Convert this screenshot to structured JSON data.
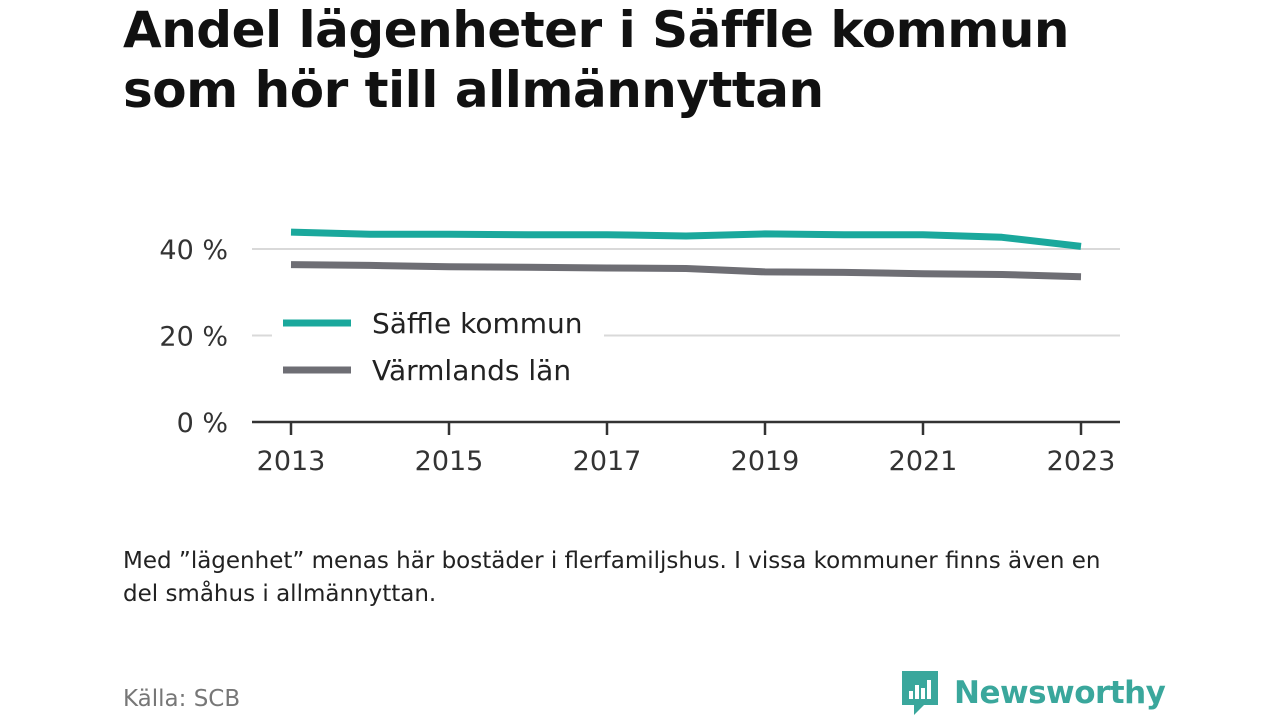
{
  "header": {
    "title": "Andel lägenheter i Säffle kommun som hör till allmännyttan"
  },
  "chart_data": {
    "type": "line",
    "x": [
      2013,
      2014,
      2015,
      2016,
      2017,
      2018,
      2019,
      2020,
      2021,
      2022,
      2023
    ],
    "x_tick_labels": [
      "2013",
      "2015",
      "2017",
      "2019",
      "2021",
      "2023"
    ],
    "y_tick_labels": [
      "0 %",
      "20 %",
      "40 %"
    ],
    "y_ticks": [
      0,
      20,
      40
    ],
    "ylim": [
      0,
      45
    ],
    "grid": true,
    "legend_placement": "left-middle",
    "series": [
      {
        "name": "Säffle kommun",
        "color": "#1aa89c",
        "values": [
          43.9,
          43.4,
          43.4,
          43.3,
          43.3,
          43.0,
          43.5,
          43.3,
          43.3,
          42.7,
          40.6
        ]
      },
      {
        "name": "Värmlands län",
        "color": "#6e6e74",
        "values": [
          36.4,
          36.2,
          35.9,
          35.8,
          35.6,
          35.5,
          34.7,
          34.6,
          34.3,
          34.1,
          33.6
        ]
      }
    ]
  },
  "footer": {
    "note": "Med ”lägenhet” menas här bostäder i flerfamiljshus. I vissa kommuner finns även en del småhus i allmännyttan.",
    "source": "Källa: SCB",
    "brand": "Newsworthy",
    "brand_color": "#3aa79c"
  }
}
